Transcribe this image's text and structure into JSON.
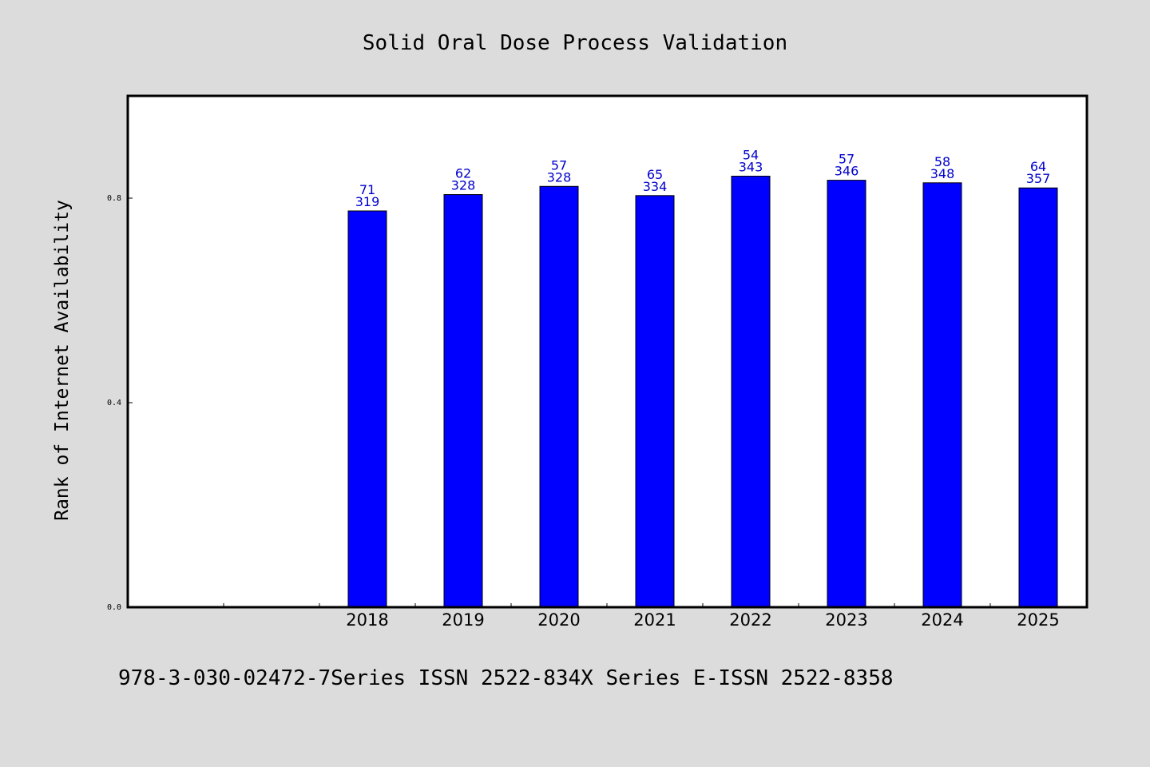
{
  "chart_data": {
    "type": "bar",
    "title": "Solid Oral Dose Process Validation",
    "xlabel": "",
    "ylabel": "Rank of Internet Availability",
    "categories": [
      "2018",
      "2019",
      "2020",
      "2021",
      "2022",
      "2023",
      "2024",
      "2025"
    ],
    "values": [
      0.775,
      0.807,
      0.823,
      0.805,
      0.843,
      0.835,
      0.83,
      0.82
    ],
    "data_labels_top": [
      "71",
      "62",
      "57",
      "65",
      "54",
      "57",
      "58",
      "64"
    ],
    "data_labels_bottom": [
      "319",
      "328",
      "328",
      "334",
      "343",
      "346",
      "348",
      "357"
    ],
    "ylim": [
      0,
      1.0
    ],
    "yticks": [
      0.0,
      0.4,
      0.8
    ],
    "ytick_labels": [
      "0.0",
      "0.4",
      "0.8"
    ],
    "grid": false,
    "colors": {
      "bar": "#0000ff",
      "bar_edge": "#000000",
      "label": "#0000cc",
      "background": "#dcdcdc",
      "plot_background": "#ffffff"
    }
  },
  "footnote": "978-3-030-02472-7Series ISSN 2522-834X Series E-ISSN 2522-8358"
}
